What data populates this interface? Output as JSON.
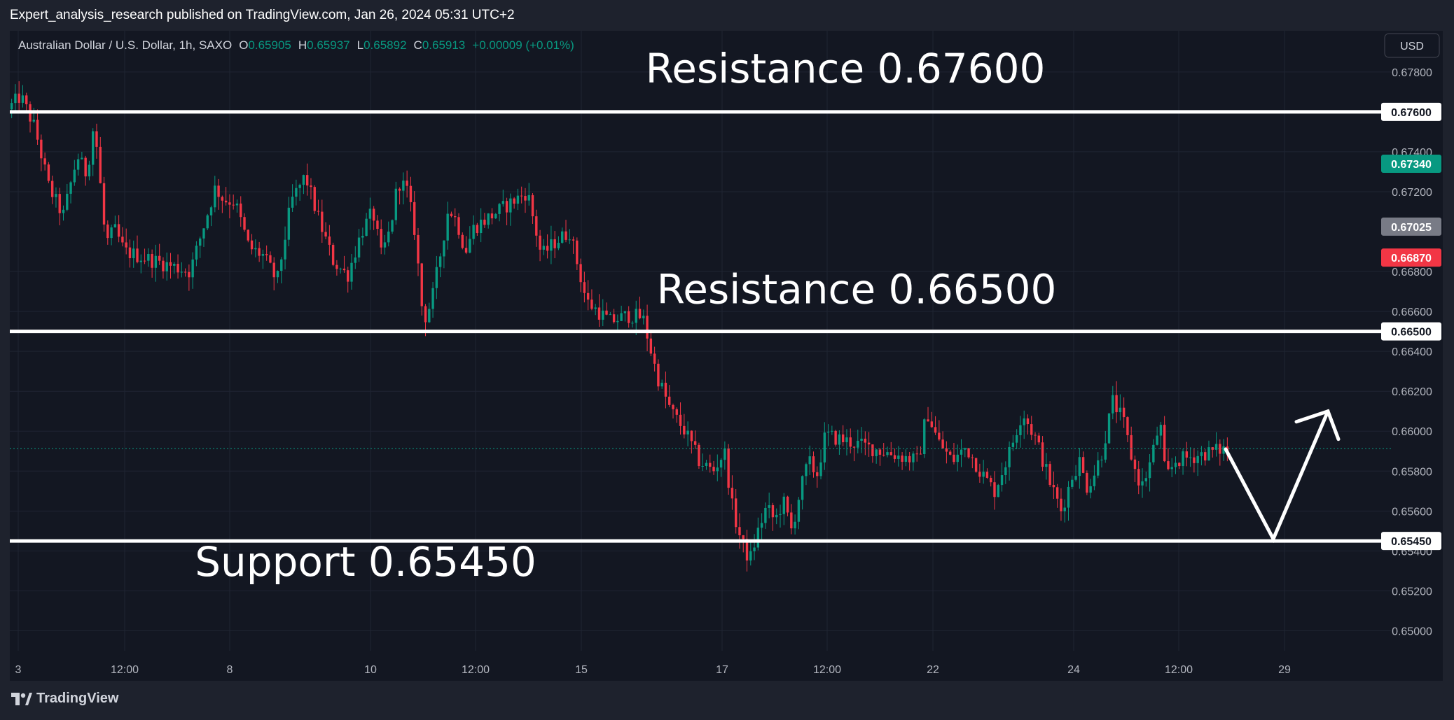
{
  "attribution": "Expert_analysis_research published on TradingView.com, Jan 26, 2024 05:31 UTC+2",
  "footer": {
    "brand": "TradingView"
  },
  "legend": {
    "symbol": "Australian Dollar / U.S. Dollar, 1h, SAXO",
    "o_label": "O",
    "o_value": "0.65905",
    "h_label": "H",
    "h_value": "0.65937",
    "l_label": "L",
    "l_value": "0.65892",
    "c_label": "C",
    "c_value": "0.65913",
    "change": "+0.00009 (+0.01%)"
  },
  "currency_button": "USD",
  "colors": {
    "background": "#131722",
    "frame": "#1e222d",
    "grid": "#1f2432",
    "up": "#089981",
    "down": "#f23645",
    "level_line": "#ffffff",
    "text": "#b2b5be",
    "green_badge": "#089981",
    "gray_badge": "#787b86",
    "red_badge": "#f23645"
  },
  "chart_data": {
    "type": "candlestick",
    "title": "Australian Dollar / U.S. Dollar, 1h, SAXO",
    "ylim": [
      0.649,
      0.6788
    ],
    "y_ticks": [
      "0.65000",
      "0.65200",
      "0.65400",
      "0.65600",
      "0.65800",
      "0.66000",
      "0.66200",
      "0.66400",
      "0.66600",
      "0.66800",
      "0.67200",
      "0.67400",
      "0.67800"
    ],
    "x_ticks": [
      "3",
      "12:00",
      "8",
      "10",
      "12:00",
      "15",
      "17",
      "12:00",
      "22",
      "24",
      "12:00",
      "29"
    ],
    "price_path": [
      {
        "x": "3",
        "y": 0.6762
      },
      {
        "x": "3",
        "y": 0.6768
      },
      {
        "x": "3",
        "y": 0.6752
      },
      {
        "x": "4",
        "y": 0.6722
      },
      {
        "x": "4",
        "y": 0.6708
      },
      {
        "x": "4",
        "y": 0.6738
      },
      {
        "x": "5",
        "y": 0.6728
      },
      {
        "x": "5",
        "y": 0.6752
      },
      {
        "x": "5",
        "y": 0.674
      },
      {
        "x": "5",
        "y": 0.6705
      },
      {
        "x": "5",
        "y": 0.6694
      },
      {
        "x": "5",
        "y": 0.6702
      },
      {
        "x": "5",
        "y": 0.6696
      },
      {
        "x": "5",
        "y": 0.669
      },
      {
        "x": "7",
        "y": 0.668
      },
      {
        "x": "8",
        "y": 0.6722
      },
      {
        "x": "8",
        "y": 0.6716
      },
      {
        "x": "8",
        "y": 0.6715
      },
      {
        "x": "8",
        "y": 0.6692
      },
      {
        "x": "8",
        "y": 0.6688
      },
      {
        "x": "9",
        "y": 0.6675
      },
      {
        "x": "9",
        "y": 0.6715
      },
      {
        "x": "9",
        "y": 0.6728
      },
      {
        "x": "9",
        "y": 0.6705
      },
      {
        "x": "9",
        "y": 0.6685
      },
      {
        "x": "10",
        "y": 0.6678
      },
      {
        "x": "10",
        "y": 0.67
      },
      {
        "x": "10",
        "y": 0.671
      },
      {
        "x": "10",
        "y": 0.6688
      },
      {
        "x": "10",
        "y": 0.67
      },
      {
        "x": "11",
        "y": 0.6725
      },
      {
        "x": "11",
        "y": 0.6722
      },
      {
        "x": "11",
        "y": 0.67
      },
      {
        "x": "11",
        "y": 0.6655
      },
      {
        "x": "11",
        "y": 0.6665
      },
      {
        "x": "12",
        "y": 0.6688
      },
      {
        "x": "12",
        "y": 0.6712
      },
      {
        "x": "12",
        "y": 0.6705
      },
      {
        "x": "12",
        "y": 0.669
      },
      {
        "x": "12",
        "y": 0.6702
      },
      {
        "x": "14",
        "y": 0.672
      },
      {
        "x": "14",
        "y": 0.6688
      },
      {
        "x": "14",
        "y": 0.6695
      },
      {
        "x": "15",
        "y": 0.67
      },
      {
        "x": "15",
        "y": 0.6665
      },
      {
        "x": "15",
        "y": 0.6655
      },
      {
        "x": "16",
        "y": 0.6658
      },
      {
        "x": "16",
        "y": 0.6657
      },
      {
        "x": "16",
        "y": 0.6628
      },
      {
        "x": "16",
        "y": 0.661
      },
      {
        "x": "16",
        "y": 0.66
      },
      {
        "x": "17",
        "y": 0.6585
      },
      {
        "x": "17",
        "y": 0.658
      },
      {
        "x": "17",
        "y": 0.659
      },
      {
        "x": "17",
        "y": 0.656
      },
      {
        "x": "17",
        "y": 0.6545
      },
      {
        "x": "18",
        "y": 0.6535
      },
      {
        "x": "18",
        "y": 0.655
      },
      {
        "x": "18",
        "y": 0.6562
      },
      {
        "x": "18",
        "y": 0.6555
      },
      {
        "x": "18",
        "y": 0.6565
      },
      {
        "x": "19",
        "y": 0.655
      },
      {
        "x": "19",
        "y": 0.657
      },
      {
        "x": "19",
        "y": 0.6585
      },
      {
        "x": "19",
        "y": 0.6578
      },
      {
        "x": "19",
        "y": 0.6598
      },
      {
        "x": "22",
        "y": 0.6585
      },
      {
        "x": "22",
        "y": 0.661
      },
      {
        "x": "22",
        "y": 0.6595
      },
      {
        "x": "22",
        "y": 0.6585
      },
      {
        "x": "22",
        "y": 0.6592
      },
      {
        "x": "23",
        "y": 0.658
      },
      {
        "x": "23",
        "y": 0.657
      },
      {
        "x": "23",
        "y": 0.6588
      },
      {
        "x": "23",
        "y": 0.661
      },
      {
        "x": "23",
        "y": 0.6595
      },
      {
        "x": "24",
        "y": 0.6575
      },
      {
        "x": "24",
        "y": 0.656
      },
      {
        "x": "24",
        "y": 0.6578
      },
      {
        "x": "24",
        "y": 0.6585
      },
      {
        "x": "24",
        "y": 0.6572
      },
      {
        "x": "24",
        "y": 0.6578
      },
      {
        "x": "25",
        "y": 0.659
      },
      {
        "x": "25",
        "y": 0.6615
      },
      {
        "x": "25",
        "y": 0.6605
      },
      {
        "x": "25",
        "y": 0.6582
      },
      {
        "x": "26",
        "y": 0.6572
      },
      {
        "x": "26",
        "y": 0.6578
      },
      {
        "x": "26",
        "y": 0.6585
      },
      {
        "x": "26",
        "y": 0.6595
      },
      {
        "x": "26",
        "y": 0.6605
      },
      {
        "x": "26",
        "y": 0.658
      },
      {
        "x": "26",
        "y": 0.6578
      },
      {
        "x": "26",
        "y": 0.6585
      },
      {
        "x": "26",
        "y": 0.6591
      }
    ],
    "levels": [
      {
        "label": "Resistance 0.67600",
        "value": 0.676
      },
      {
        "label": "Resistance 0.66500",
        "value": 0.665
      },
      {
        "label": "Support 0.65450",
        "value": 0.6545
      }
    ],
    "price_badges": [
      {
        "text": "0.67600",
        "value": 0.676,
        "style": "white"
      },
      {
        "text": "0.67340",
        "value": 0.6734,
        "style": "green"
      },
      {
        "text": "0.67025",
        "value": 0.67025,
        "style": "gray"
      },
      {
        "text": "0.66870",
        "value": 0.6687,
        "style": "red"
      },
      {
        "text": "0.66500",
        "value": 0.665,
        "style": "white"
      },
      {
        "text": "0.65450",
        "value": 0.6545,
        "style": "white"
      }
    ],
    "current_price": 0.65913,
    "projection": [
      {
        "x": "26",
        "y": 0.6591
      },
      {
        "x": "28",
        "y": 0.6546
      },
      {
        "x": "30",
        "y": 0.661
      }
    ],
    "grid": true
  }
}
